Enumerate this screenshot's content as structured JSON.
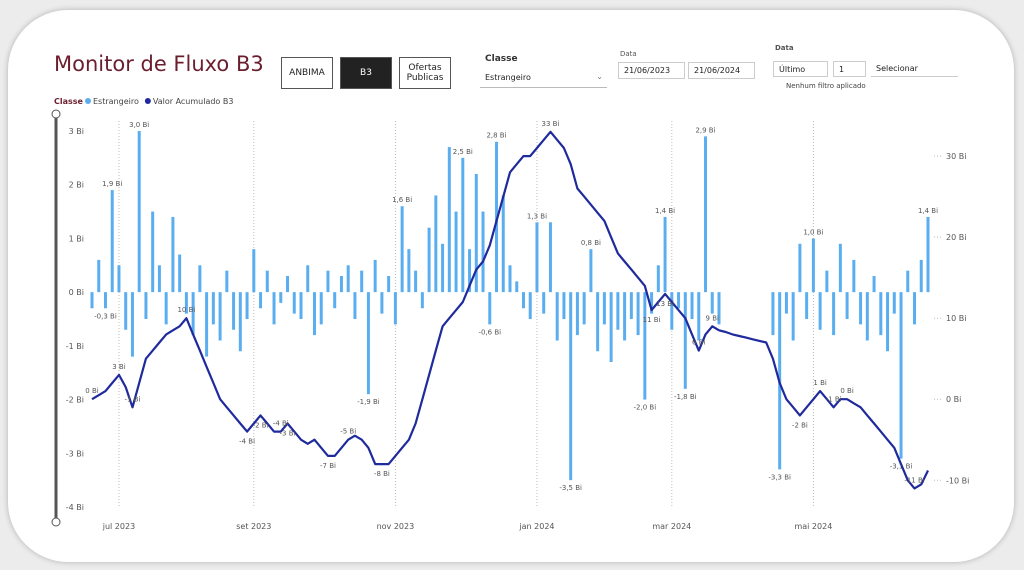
{
  "header": {
    "title": "Monitor de Fluxo B3",
    "buttons": [
      "ANBIMA",
      "B3",
      "Ofertas Publicas"
    ],
    "selected_button": 1
  },
  "filters": {
    "classe_label": "Classe",
    "classe_value": "Estrangeiro",
    "date_label": "Data",
    "date_start": "21/06/2023",
    "date_end": "21/06/2024",
    "period_label": "Data",
    "period_unit": "Último",
    "period_count": "1",
    "period_select": "Selecionar",
    "filter_note": "Nenhum filtro aplicado"
  },
  "chart_data": {
    "type": "combo",
    "legend_title": "Classe",
    "grid": "x",
    "categories": [
      null,
      null,
      null,
      null,
      "jul 2023",
      null,
      null,
      null,
      null,
      null,
      null,
      null,
      null,
      null,
      null,
      null,
      null,
      null,
      null,
      null,
      null,
      null,
      null,
      null,
      "set 2023",
      null,
      null,
      null,
      null,
      null,
      null,
      null,
      null,
      null,
      null,
      null,
      null,
      null,
      null,
      null,
      null,
      null,
      null,
      null,
      null,
      "nov 2023",
      null,
      null,
      null,
      null,
      null,
      null,
      null,
      null,
      null,
      null,
      null,
      null,
      null,
      null,
      null,
      null,
      null,
      null,
      null,
      null,
      "jan 2024",
      null,
      null,
      null,
      null,
      null,
      null,
      null,
      null,
      null,
      null,
      null,
      null,
      null,
      null,
      null,
      null,
      null,
      null,
      null,
      "mar 2024",
      null,
      null,
      null,
      null,
      null,
      null,
      null,
      null,
      null,
      null,
      null,
      null,
      null,
      null,
      null,
      null,
      null,
      null,
      null,
      null,
      "mai 2024",
      null,
      null,
      null,
      null,
      null,
      null,
      null,
      null,
      null,
      null,
      null,
      null,
      null,
      null,
      null,
      null,
      null
    ],
    "ylim": [
      -4,
      3
    ],
    "yticks": [
      {
        "value": -4,
        "label": "-4 Bi"
      },
      {
        "value": -3,
        "label": "-3 Bi"
      },
      {
        "value": -2,
        "label": "-2 Bi"
      },
      {
        "value": -1,
        "label": "-1 Bi"
      },
      {
        "value": 0,
        "label": "0 Bi"
      },
      {
        "value": 1,
        "label": "1 Bi"
      },
      {
        "value": 2,
        "label": "2 Bi"
      },
      {
        "value": 3,
        "label": "3 Bi"
      }
    ],
    "y2lim": [
      -13.3,
      33.1
    ],
    "y2ticks": [
      {
        "value": -10,
        "label": "-10 Bi"
      },
      {
        "value": 0,
        "label": "0 Bi"
      },
      {
        "value": 10,
        "label": "10 Bi"
      },
      {
        "value": 20,
        "label": "20 Bi"
      },
      {
        "value": 30,
        "label": "30 Bi"
      }
    ],
    "series": [
      {
        "name": "Estrangeiro",
        "type": "bar",
        "color": "#5aaef0",
        "values": [
          -0.3,
          0.6,
          -0.3,
          1.9,
          0.5,
          -0.7,
          -1.2,
          3.0,
          -0.5,
          1.5,
          0.5,
          -0.6,
          1.4,
          0.7,
          -0.4,
          -0.8,
          0.5,
          -1.2,
          -0.6,
          -0.9,
          0.4,
          -0.7,
          -1.1,
          -0.5,
          0.8,
          -0.3,
          0.4,
          -0.6,
          -0.2,
          0.3,
          -0.4,
          -0.5,
          0.5,
          -0.8,
          -0.6,
          0.4,
          -0.3,
          0.3,
          0.5,
          -0.5,
          0.4,
          -1.9,
          0.6,
          -0.4,
          0.3,
          -0.6,
          1.6,
          0.8,
          0.4,
          -0.3,
          1.2,
          1.8,
          0.9,
          2.7,
          1.5,
          2.5,
          0.8,
          2.2,
          1.5,
          -0.6,
          2.8,
          1.8,
          0.5,
          0.2,
          -0.3,
          -0.5,
          1.3,
          -0.4,
          1.3,
          -0.9,
          -0.5,
          -3.5,
          -0.8,
          -0.6,
          0.8,
          -1.1,
          -0.6,
          -1.3,
          -0.7,
          -0.9,
          -0.5,
          -0.8,
          -2.0,
          -0.4,
          0.5,
          1.4,
          -0.7,
          -0.3,
          -1.8,
          -0.5,
          -0.9,
          2.9,
          -0.4,
          -0.6,
          null,
          null,
          null,
          null,
          null,
          null,
          null,
          -0.8,
          -3.3,
          -0.4,
          -0.9,
          0.9,
          -0.5,
          1.0,
          -0.7,
          0.4,
          -0.8,
          0.9,
          -0.5,
          0.6,
          -0.6,
          -0.9,
          0.3,
          -0.8,
          -1.1,
          -0.4,
          -3.1,
          0.4,
          -0.6,
          0.6,
          1.4
        ],
        "value_labels": [
          null,
          null,
          "-0,3 Bi",
          "1,9 Bi",
          null,
          null,
          null,
          "3,0 Bi",
          null,
          null,
          null,
          null,
          null,
          null,
          null,
          null,
          null,
          null,
          null,
          null,
          null,
          null,
          null,
          null,
          null,
          null,
          null,
          null,
          null,
          null,
          null,
          null,
          null,
          null,
          null,
          null,
          null,
          null,
          null,
          null,
          null,
          "-1,9 Bi",
          null,
          null,
          null,
          null,
          "1,6 Bi",
          null,
          null,
          null,
          null,
          null,
          null,
          null,
          null,
          "2,5 Bi",
          null,
          null,
          null,
          "-0,6 Bi",
          "2,8 Bi",
          null,
          null,
          null,
          null,
          null,
          "1,3 Bi",
          null,
          null,
          null,
          null,
          "-3,5 Bi",
          null,
          null,
          "0,8 Bi",
          null,
          null,
          null,
          null,
          null,
          null,
          null,
          "-2,0 Bi",
          null,
          null,
          "1,4 Bi",
          null,
          null,
          "-1,8 Bi",
          null,
          null,
          "2,9 Bi",
          null,
          null,
          null,
          null,
          null,
          null,
          null,
          null,
          null,
          null,
          "-3,3 Bi",
          null,
          null,
          null,
          null,
          "1,0 Bi",
          null,
          null,
          null,
          null,
          null,
          null,
          null,
          null,
          null,
          null,
          null,
          null,
          "-3,1 Bi",
          null,
          null,
          null,
          "1,4 Bi"
        ]
      },
      {
        "name": "Valor Acumulado B3",
        "type": "line",
        "axis": "y2",
        "color": "#1f2a9c",
        "values": [
          0,
          0.5,
          1,
          2,
          3,
          1.5,
          -1,
          2,
          5,
          6,
          7,
          8,
          8.5,
          9,
          10,
          8,
          6,
          4,
          2,
          0,
          -1,
          -2,
          -3,
          -4,
          -3,
          -2,
          -3,
          -4,
          -4,
          -3,
          -4,
          -5,
          -5.5,
          -5,
          -6,
          -7,
          -7,
          -6,
          -5,
          -4.5,
          -5,
          -6,
          -8,
          -8,
          -8,
          -7,
          -6,
          -5,
          -3,
          0,
          3,
          6,
          9,
          10,
          11,
          12,
          14,
          16,
          17,
          19,
          22,
          25,
          28,
          29,
          30,
          30,
          31,
          32,
          33,
          32,
          31,
          29,
          26,
          25,
          24,
          23,
          22,
          20,
          18,
          17,
          16,
          15,
          14,
          11,
          12,
          13,
          12,
          11,
          10,
          8,
          6,
          8,
          9,
          8.5,
          8.3,
          8,
          7.8,
          7.6,
          7.4,
          7.2,
          7,
          5,
          2,
          0,
          -1,
          -2,
          -1,
          0,
          1,
          0,
          -1,
          0,
          0,
          -0.5,
          -1,
          -2,
          -3,
          -4,
          -5,
          -6,
          -8,
          -10,
          -11,
          -10.5,
          -8.8
        ],
        "value_labels": [
          "0 Bi",
          null,
          null,
          null,
          "3 Bi",
          null,
          "-1 Bi",
          null,
          null,
          null,
          null,
          null,
          null,
          null,
          "10 Bi",
          null,
          null,
          null,
          null,
          null,
          null,
          null,
          null,
          "-4 Bi",
          null,
          "-2 Bi",
          null,
          null,
          "-4 Bi",
          "-3 Bi",
          null,
          null,
          null,
          null,
          null,
          "-7 Bi",
          null,
          null,
          "-5 Bi",
          null,
          null,
          null,
          null,
          "-8 Bi",
          null,
          null,
          null,
          null,
          null,
          null,
          null,
          null,
          null,
          null,
          null,
          null,
          null,
          null,
          null,
          null,
          null,
          null,
          null,
          null,
          null,
          null,
          null,
          null,
          "33 Bi",
          null,
          null,
          null,
          null,
          null,
          null,
          null,
          null,
          null,
          null,
          null,
          null,
          null,
          null,
          "11 Bi",
          null,
          "13 Bi",
          null,
          null,
          null,
          null,
          "6 Bi",
          null,
          "9 Bi",
          null,
          null,
          null,
          null,
          null,
          null,
          null,
          null,
          null,
          null,
          null,
          null,
          "-2 Bi",
          null,
          null,
          "1 Bi",
          null,
          "-1 Bi",
          null,
          "0 Bi",
          null,
          null,
          null,
          null,
          null,
          null,
          null,
          null,
          null,
          "-11 Bi",
          null,
          null
        ]
      }
    ]
  }
}
